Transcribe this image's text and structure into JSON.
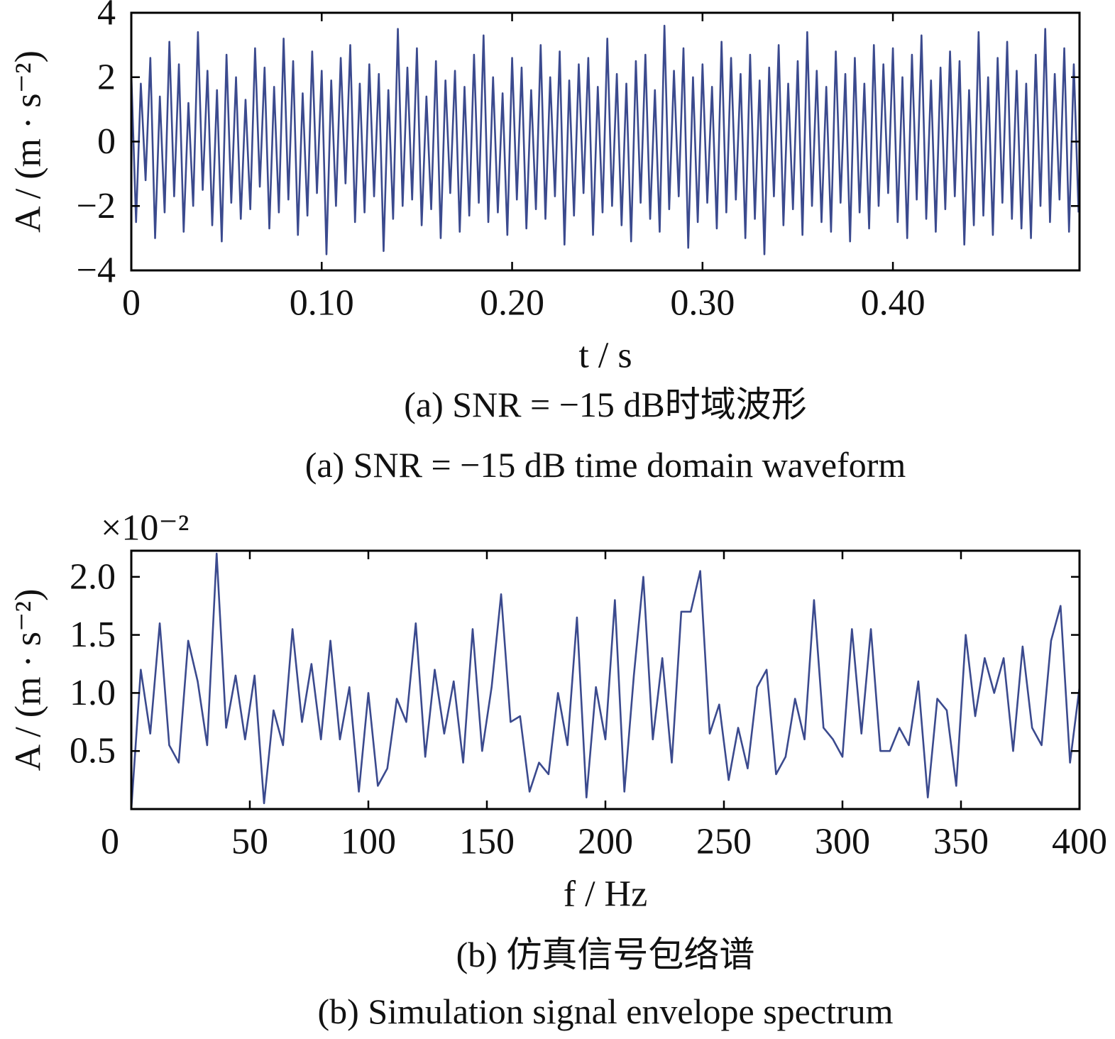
{
  "chart_data": [
    {
      "type": "line",
      "xlabel": "t / s",
      "ylabel": "A / (m · s⁻²)",
      "captions": [
        "(a)  SNR = −15 dB时域波形",
        "(a)  SNR = −15 dB time domain waveform"
      ],
      "xlim": [
        0,
        0.498
      ],
      "ylim": [
        -4,
        4
      ],
      "xticks": [
        0,
        {
          "value": 0.1,
          "label": "0.10"
        },
        {
          "value": 0.2,
          "label": "0.20"
        },
        {
          "value": 0.3,
          "label": "0.30"
        },
        {
          "value": 0.4,
          "label": "0.40"
        }
      ],
      "yticks": [
        {
          "value": -4,
          "label": "−4"
        },
        {
          "value": -2,
          "label": "−2"
        },
        0,
        2,
        4
      ],
      "x": [
        0,
        0.0025,
        0.005,
        0.0075,
        0.01,
        0.0125,
        0.015,
        0.0175,
        0.02,
        0.0225,
        0.025,
        0.0275,
        0.03,
        0.0325,
        0.035,
        0.0375,
        0.04,
        0.0425,
        0.045,
        0.0475,
        0.05,
        0.0525,
        0.055,
        0.0575,
        0.06,
        0.0625,
        0.065,
        0.0675,
        0.07,
        0.0725,
        0.075,
        0.0775,
        0.08,
        0.0825,
        0.085,
        0.0875,
        0.09,
        0.0925,
        0.095,
        0.0975,
        0.1,
        0.1025,
        0.105,
        0.1075,
        0.11,
        0.1125,
        0.115,
        0.1175,
        0.12,
        0.1225,
        0.125,
        0.1275,
        0.13,
        0.1325,
        0.135,
        0.1375,
        0.14,
        0.1425,
        0.145,
        0.1475,
        0.15,
        0.1525,
        0.155,
        0.1575,
        0.16,
        0.1625,
        0.165,
        0.1675,
        0.17,
        0.1725,
        0.175,
        0.1775,
        0.18,
        0.1825,
        0.185,
        0.1875,
        0.19,
        0.1925,
        0.195,
        0.1975,
        0.2,
        0.2025,
        0.205,
        0.2075,
        0.21,
        0.2125,
        0.215,
        0.2175,
        0.22,
        0.2225,
        0.225,
        0.2275,
        0.23,
        0.2325,
        0.235,
        0.2375,
        0.24,
        0.2425,
        0.245,
        0.2475,
        0.25,
        0.2525,
        0.255,
        0.2575,
        0.26,
        0.2625,
        0.265,
        0.2675,
        0.27,
        0.2725,
        0.275,
        0.2775,
        0.28,
        0.2825,
        0.285,
        0.2875,
        0.29,
        0.2925,
        0.295,
        0.2975,
        0.3,
        0.3025,
        0.305,
        0.3075,
        0.31,
        0.3125,
        0.315,
        0.3175,
        0.32,
        0.3225,
        0.325,
        0.3275,
        0.33,
        0.3325,
        0.335,
        0.3375,
        0.34,
        0.3425,
        0.345,
        0.3475,
        0.35,
        0.3525,
        0.355,
        0.3575,
        0.36,
        0.3625,
        0.365,
        0.3675,
        0.37,
        0.3725,
        0.375,
        0.3775,
        0.38,
        0.3825,
        0.385,
        0.3875,
        0.39,
        0.3925,
        0.395,
        0.3975,
        0.4,
        0.4025,
        0.405,
        0.4075,
        0.41,
        0.4125,
        0.415,
        0.4175,
        0.42,
        0.4225,
        0.425,
        0.4275,
        0.43,
        0.4325,
        0.435,
        0.4375,
        0.44,
        0.4425,
        0.445,
        0.4475,
        0.45,
        0.4525,
        0.455,
        0.4575,
        0.46,
        0.4625,
        0.465,
        0.4675,
        0.47,
        0.4725,
        0.475,
        0.4775,
        0.48,
        0.4825,
        0.485,
        0.4875,
        0.49,
        0.4925,
        0.495,
        0.4975
      ],
      "series": [
        {
          "color": "#3b4a8e",
          "values": [
            2.1,
            -2.5,
            1.8,
            -1.2,
            2.6,
            -3.0,
            1.4,
            -2.2,
            3.1,
            -1.7,
            2.4,
            -2.8,
            1.2,
            -2.0,
            3.4,
            -1.5,
            2.2,
            -2.6,
            1.6,
            -3.1,
            2.7,
            -1.9,
            2.0,
            -2.4,
            1.3,
            -2.1,
            2.9,
            -1.4,
            2.3,
            -2.7,
            1.7,
            -2.2,
            3.2,
            -1.8,
            2.5,
            -2.9,
            1.5,
            -2.3,
            2.8,
            -1.6,
            2.2,
            -3.5,
            1.9,
            -2.0,
            2.6,
            -1.3,
            3.0,
            -2.5,
            1.8,
            -2.2,
            2.4,
            -1.7,
            2.1,
            -3.4,
            1.6,
            -2.4,
            3.5,
            -2.0,
            2.3,
            -1.8,
            2.9,
            -2.6,
            1.4,
            -2.1,
            2.5,
            -3.0,
            1.9,
            -1.6,
            2.2,
            -2.8,
            1.7,
            -2.3,
            2.7,
            -1.9,
            3.3,
            -2.5,
            2.0,
            -2.2,
            1.5,
            -2.9,
            2.6,
            -1.8,
            2.3,
            -2.7,
            1.6,
            -2.1,
            3.0,
            -2.4,
            2.0,
            -1.7,
            2.8,
            -3.2,
            1.9,
            -2.3,
            2.4,
            -1.6,
            2.6,
            -2.9,
            1.7,
            -2.2,
            3.2,
            -2.0,
            2.1,
            -2.6,
            1.8,
            -3.1,
            2.5,
            -1.9,
            2.7,
            -2.4,
            1.6,
            -2.8,
            3.6,
            -2.1,
            2.2,
            -1.7,
            2.9,
            -3.3,
            2.0,
            -2.5,
            2.4,
            -1.9,
            1.7,
            -2.7,
            3.1,
            -2.2,
            2.6,
            -1.8,
            2.1,
            -3.0,
            2.7,
            -2.4,
            1.9,
            -3.5,
            2.3,
            -1.7,
            3.0,
            -2.6,
            1.8,
            -2.1,
            2.5,
            -2.9,
            3.4,
            -2.0,
            2.2,
            -2.5,
            1.7,
            -2.8,
            2.8,
            -1.9,
            2.1,
            -3.1,
            2.6,
            -2.2,
            1.8,
            -2.7,
            3.0,
            -2.0,
            2.4,
            -1.6,
            2.9,
            -2.5,
            2.0,
            -3.0,
            2.7,
            -1.8,
            3.3,
            -2.4,
            1.9,
            -2.8,
            2.3,
            -2.1,
            2.8,
            -1.7,
            2.5,
            -3.2,
            1.6,
            -2.6,
            3.4,
            -2.3,
            2.0,
            -2.9,
            2.6,
            -1.9,
            3.1,
            -2.4,
            2.2,
            -2.7,
            1.8,
            -3.0,
            2.7,
            -2.0,
            3.5,
            -2.5,
            2.1,
            -1.8,
            2.9,
            -2.8,
            2.4,
            -2.2
          ]
        }
      ]
    },
    {
      "type": "line",
      "xlabel": "f / Hz",
      "ylabel": "A / (m · s⁻²)",
      "y_multiplier": "×10⁻²",
      "captions": [
        "(b)  仿真信号包络谱",
        "(b)  Simulation signal envelope spectrum"
      ],
      "xlim": [
        0,
        400
      ],
      "ylim": [
        0,
        2.225
      ],
      "xticks": [
        0,
        50,
        100,
        150,
        200,
        250,
        300,
        350,
        400
      ],
      "yticks": [
        0.5,
        {
          "value": 1,
          "label": "1.0"
        },
        1.5,
        {
          "value": 2,
          "label": "2.0"
        }
      ],
      "x": [
        0,
        4,
        8,
        12,
        16,
        20,
        24,
        28,
        32,
        36,
        40,
        44,
        48,
        52,
        56,
        60,
        64,
        68,
        72,
        76,
        80,
        84,
        88,
        92,
        96,
        100,
        104,
        108,
        112,
        116,
        120,
        124,
        128,
        132,
        136,
        140,
        144,
        148,
        152,
        156,
        160,
        164,
        168,
        172,
        176,
        180,
        184,
        188,
        192,
        196,
        200,
        204,
        208,
        212,
        216,
        220,
        224,
        228,
        232,
        236,
        240,
        244,
        248,
        252,
        256,
        260,
        264,
        268,
        272,
        276,
        280,
        284,
        288,
        292,
        296,
        300,
        304,
        308,
        312,
        316,
        320,
        324,
        328,
        332,
        336,
        340,
        344,
        348,
        352,
        356,
        360,
        364,
        368,
        372,
        376,
        380,
        384,
        388,
        392,
        396,
        400
      ],
      "series": [
        {
          "color": "#3b4a8e",
          "values": [
            0,
            1.2,
            0.65,
            1.6,
            0.55,
            0.4,
            1.45,
            1.1,
            0.55,
            2.2,
            0.7,
            1.15,
            0.6,
            1.15,
            0.05,
            0.85,
            0.55,
            1.55,
            0.75,
            1.25,
            0.6,
            1.45,
            0.6,
            1.05,
            0.15,
            1.0,
            0.2,
            0.35,
            0.95,
            0.75,
            1.6,
            0.45,
            1.2,
            0.65,
            1.1,
            0.4,
            1.55,
            0.5,
            1.05,
            1.85,
            0.75,
            0.8,
            0.15,
            0.4,
            0.3,
            1.0,
            0.55,
            1.65,
            0.1,
            1.05,
            0.6,
            1.8,
            0.15,
            1.15,
            2.0,
            0.6,
            1.3,
            0.4,
            1.7,
            1.7,
            2.05,
            0.65,
            0.9,
            0.25,
            0.7,
            0.35,
            1.05,
            1.2,
            0.3,
            0.45,
            0.95,
            0.6,
            1.8,
            0.7,
            0.6,
            0.45,
            1.55,
            0.65,
            1.55,
            0.5,
            0.5,
            0.7,
            0.55,
            1.1,
            0.1,
            0.95,
            0.85,
            0.2,
            1.5,
            0.8,
            1.3,
            1.0,
            1.3,
            0.5,
            1.4,
            0.7,
            0.55,
            1.45,
            1.75,
            0.4,
            1.05
          ]
        }
      ]
    }
  ]
}
